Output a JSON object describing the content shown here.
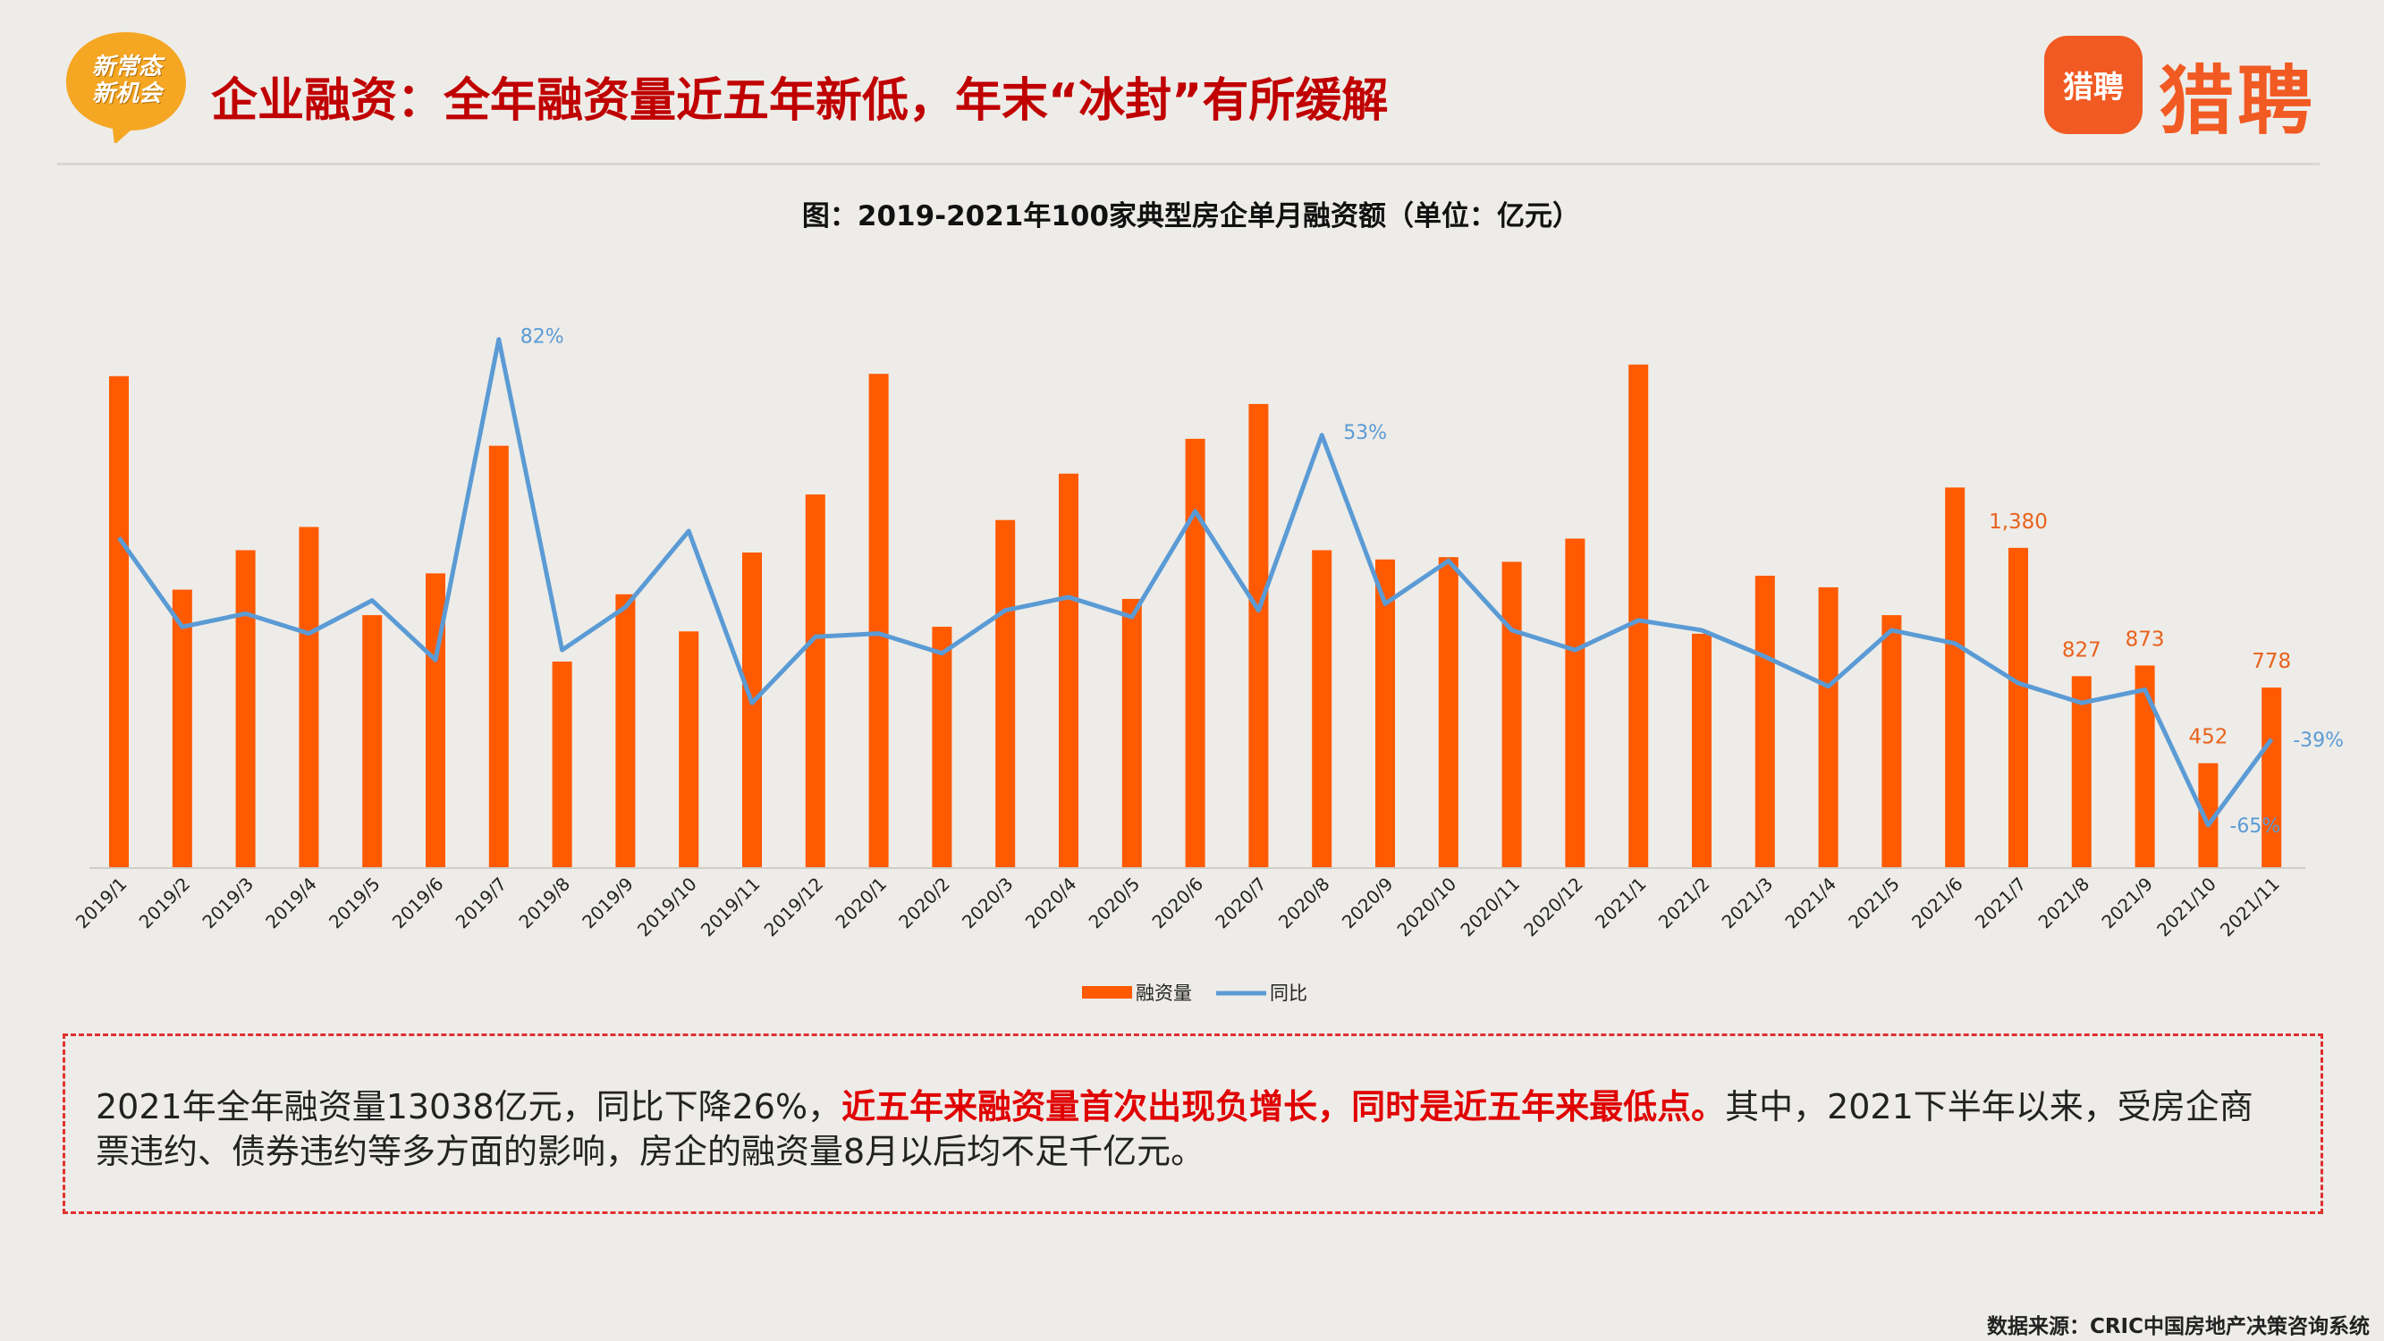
{
  "header": {
    "badge_line1": "新常态",
    "badge_line2": "新机会",
    "title": "企业融资：全年融资量近五年新低，年末“冰封”有所缓解",
    "logo_box_text": "猎聘",
    "logo_word": "猎聘"
  },
  "colors": {
    "accent_red": "#c00000",
    "bar_orange": "#ff5a00",
    "line_blue": "#5b9bd5",
    "logo_orange": "#f15a22"
  },
  "chart_data": {
    "type": "bar",
    "title": "图：2019-2021年100家典型房企单月融资额（单位：亿元）",
    "categories": [
      "2019/1",
      "2019/2",
      "2019/3",
      "2019/4",
      "2019/5",
      "2019/6",
      "2019/7",
      "2019/8",
      "2019/9",
      "2019/10",
      "2019/11",
      "2019/12",
      "2020/1",
      "2020/2",
      "2020/3",
      "2020/4",
      "2020/5",
      "2020/6",
      "2020/7",
      "2020/8",
      "2020/9",
      "2020/10",
      "2020/11",
      "2020/12",
      "2021/1",
      "2021/2",
      "2021/3",
      "2021/4",
      "2021/5",
      "2021/6",
      "2021/7",
      "2021/8",
      "2021/9",
      "2021/10",
      "2021/11"
    ],
    "series": [
      {
        "name": "融资量",
        "type": "bar",
        "values": [
          2120,
          1200,
          1370,
          1470,
          1090,
          1270,
          1820,
          890,
          1180,
          1020,
          1360,
          1610,
          2130,
          1040,
          1500,
          1700,
          1160,
          1850,
          2000,
          1370,
          1330,
          1340,
          1320,
          1420,
          2170,
          1010,
          1260,
          1210,
          1090,
          1640,
          1380,
          827,
          873,
          452,
          778
        ],
        "labels": {
          "2021/7": "1,380",
          "2021/8": "827",
          "2021/9": "873",
          "2021/10": "452",
          "2021/11": "778"
        }
      },
      {
        "name": "同比",
        "type": "line",
        "values": [
          22,
          -5,
          -1,
          -7,
          3,
          -15,
          82,
          -12,
          1,
          24,
          -28,
          -8,
          -7,
          -13,
          0,
          4,
          -2,
          30,
          0,
          53,
          2,
          15,
          -6,
          -12,
          -3,
          -6,
          -14,
          -23,
          -6,
          -10,
          -22,
          -28,
          -24,
          -65,
          -39
        ],
        "labels": {
          "2019/7": "82%",
          "2020/8": "53%",
          "2021/10": "-65%",
          "2021/11": "-39%"
        }
      }
    ],
    "y_range_bar": [
      0,
      2200
    ],
    "y_range_line": [
      -75,
      90
    ],
    "legend_position": "bottom",
    "grid": false
  },
  "note": {
    "text_a": "2021年全年融资量13038亿元，同比下降26%，",
    "text_highlight": "近五年来融资量首次出现负增长，同时是近五年来最低点。",
    "text_b": "其中，2021下半年以来，受房企商票违约、债券违约等多方面的影响，房企的融资量8月以后均不足千亿元。"
  },
  "source": "数据来源：CRIC中国房地产决策咨询系统"
}
